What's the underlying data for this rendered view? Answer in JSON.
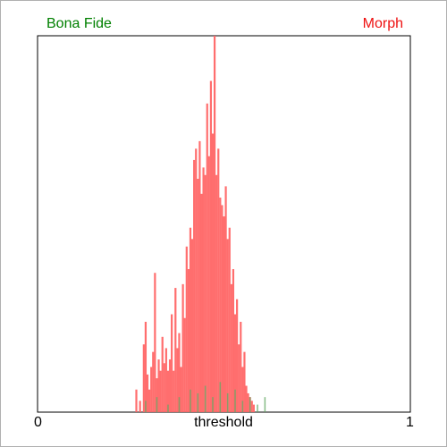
{
  "chart_data": {
    "type": "histogram",
    "xlabel": "threshold",
    "x_ticks": [
      "0",
      "1"
    ],
    "xlim": [
      0,
      1
    ],
    "ylim": [
      0,
      1
    ],
    "grid": false,
    "legend": "top",
    "series": [
      {
        "name": "Morph",
        "color": "#ff6666",
        "values": [
          [
            0.265,
            0.06
          ],
          [
            0.275,
            0.03
          ],
          [
            0.285,
            0.18
          ],
          [
            0.29,
            0.24
          ],
          [
            0.295,
            0.1
          ],
          [
            0.3,
            0.06
          ],
          [
            0.305,
            0.12
          ],
          [
            0.31,
            0.16
          ],
          [
            0.315,
            0.37
          ],
          [
            0.32,
            0.09
          ],
          [
            0.325,
            0.14
          ],
          [
            0.33,
            0.11
          ],
          [
            0.335,
            0.2
          ],
          [
            0.34,
            0.13
          ],
          [
            0.345,
            0.17
          ],
          [
            0.35,
            0.11
          ],
          [
            0.355,
            0.14
          ],
          [
            0.36,
            0.26
          ],
          [
            0.365,
            0.11
          ],
          [
            0.37,
            0.33
          ],
          [
            0.375,
            0.17
          ],
          [
            0.38,
            0.21
          ],
          [
            0.385,
            0.12
          ],
          [
            0.39,
            0.34
          ],
          [
            0.395,
            0.25
          ],
          [
            0.4,
            0.44
          ],
          [
            0.405,
            0.38
          ],
          [
            0.41,
            0.49
          ],
          [
            0.415,
            0.46
          ],
          [
            0.42,
            0.67
          ],
          [
            0.425,
            0.7
          ],
          [
            0.43,
            0.62
          ],
          [
            0.435,
            0.72
          ],
          [
            0.44,
            0.58
          ],
          [
            0.445,
            0.65
          ],
          [
            0.45,
            0.63
          ],
          [
            0.455,
            0.82
          ],
          [
            0.46,
            0.68
          ],
          [
            0.465,
            0.88
          ],
          [
            0.47,
            0.74
          ],
          [
            0.475,
            1.0
          ],
          [
            0.48,
            0.63
          ],
          [
            0.485,
            0.7
          ],
          [
            0.49,
            0.57
          ],
          [
            0.495,
            0.55
          ],
          [
            0.5,
            0.52
          ],
          [
            0.505,
            0.6
          ],
          [
            0.51,
            0.46
          ],
          [
            0.515,
            0.49
          ],
          [
            0.52,
            0.34
          ],
          [
            0.525,
            0.38
          ],
          [
            0.53,
            0.26
          ],
          [
            0.535,
            0.3
          ],
          [
            0.54,
            0.18
          ],
          [
            0.545,
            0.24
          ],
          [
            0.55,
            0.12
          ],
          [
            0.555,
            0.16
          ],
          [
            0.56,
            0.07
          ],
          [
            0.565,
            0.05
          ],
          [
            0.57,
            0.04
          ],
          [
            0.575,
            0.03
          ],
          [
            0.58,
            0.02
          ]
        ]
      },
      {
        "name": "Bona Fide",
        "color": "#66aa66",
        "values": [
          [
            0.29,
            0.03
          ],
          [
            0.32,
            0.04
          ],
          [
            0.35,
            0.02
          ],
          [
            0.38,
            0.04
          ],
          [
            0.41,
            0.06
          ],
          [
            0.43,
            0.05
          ],
          [
            0.45,
            0.07
          ],
          [
            0.47,
            0.04
          ],
          [
            0.49,
            0.08
          ],
          [
            0.51,
            0.05
          ],
          [
            0.53,
            0.06
          ],
          [
            0.55,
            0.03
          ],
          [
            0.57,
            0.04
          ],
          [
            0.59,
            0.02
          ],
          [
            0.61,
            0.04
          ]
        ]
      }
    ]
  }
}
